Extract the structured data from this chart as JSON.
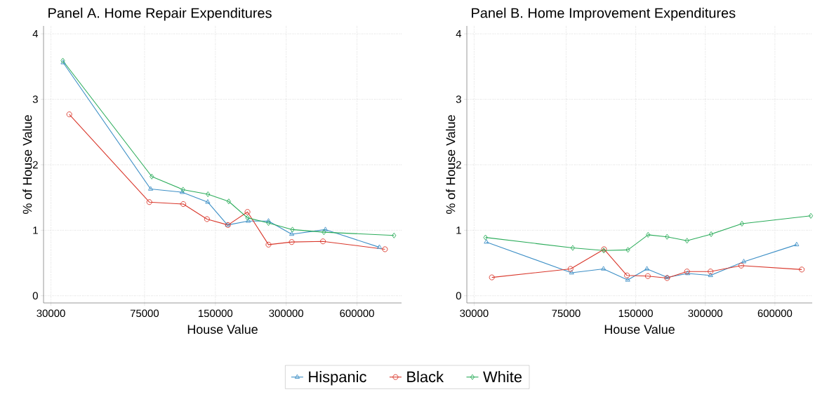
{
  "chart_data": [
    {
      "type": "line",
      "title": "Panel A. Home Repair Expenditures",
      "xlabel": "House Value",
      "ylabel": "% of House Value",
      "log": "x",
      "grid": true,
      "legend": "bottom",
      "xlim": [
        27900,
        928000
      ],
      "ylim": [
        -0.11,
        4.12
      ],
      "xticks": [
        30000,
        75000,
        150000,
        300000,
        600000
      ],
      "yticks": [
        0,
        1,
        2,
        3,
        4
      ],
      "series": [
        {
          "name": "Hispanic",
          "color": "#3d8fc6",
          "marker": "triangle",
          "x": [
            33800,
            79600,
            108500,
            139200,
            168900,
            206900,
            252300,
            316700,
            440400,
            747000
          ],
          "values": [
            3.56,
            1.63,
            1.58,
            1.43,
            1.08,
            1.14,
            1.14,
            0.94,
            1.01,
            0.74
          ]
        },
        {
          "name": "Black",
          "color": "#d9372b",
          "marker": "circle",
          "x": [
            35900,
            78600,
            109600,
            138200,
            169700,
            205400,
            252300,
            316700,
            430000,
            789000
          ],
          "values": [
            2.77,
            1.43,
            1.4,
            1.17,
            1.08,
            1.28,
            0.78,
            0.82,
            0.83,
            0.71
          ]
        },
        {
          "name": "White",
          "color": "#2bac5a",
          "marker": "diamond",
          "x": [
            33700,
            80500,
            109300,
            139500,
            171000,
            205400,
            252300,
            319000,
            434000,
            862000
          ],
          "values": [
            3.59,
            1.82,
            1.62,
            1.55,
            1.44,
            1.19,
            1.11,
            1.01,
            0.97,
            0.92
          ]
        }
      ]
    },
    {
      "type": "line",
      "title": "Panel B. Home Improvement Expenditures",
      "xlabel": "House Value",
      "ylabel": "% of House Value",
      "log": "x",
      "grid": true,
      "xlim": [
        27900,
        870000
      ],
      "ylim": [
        -0.11,
        4.12
      ],
      "xticks": [
        30000,
        75000,
        150000,
        300000,
        600000
      ],
      "yticks": [
        0,
        1,
        2,
        3,
        4
      ],
      "series": [
        {
          "color": "#3d8fc6",
          "marker": "triangle",
          "x": [
            33900,
            79200,
            108800,
            138500,
            167700,
            205400,
            251700,
            316000,
            440000,
            745000
          ],
          "values": [
            0.82,
            0.35,
            0.41,
            0.24,
            0.41,
            0.28,
            0.34,
            0.31,
            0.52,
            0.78
          ]
        },
        {
          "color": "#d9372b",
          "marker": "circle",
          "x": [
            35800,
            78400,
            109400,
            137500,
            169300,
            205000,
            250000,
            316000,
            429000,
            784000
          ],
          "values": [
            0.28,
            0.41,
            0.71,
            0.31,
            0.3,
            0.27,
            0.37,
            0.37,
            0.46,
            0.4
          ]
        },
        {
          "color": "#2bac5a",
          "marker": "diamond",
          "x": [
            33600,
            80100,
            109100,
            138800,
            169700,
            205000,
            250000,
            318000,
            432000,
            858000
          ],
          "values": [
            0.89,
            0.73,
            0.69,
            0.7,
            0.93,
            0.9,
            0.84,
            0.94,
            1.1,
            1.22
          ]
        }
      ]
    }
  ]
}
